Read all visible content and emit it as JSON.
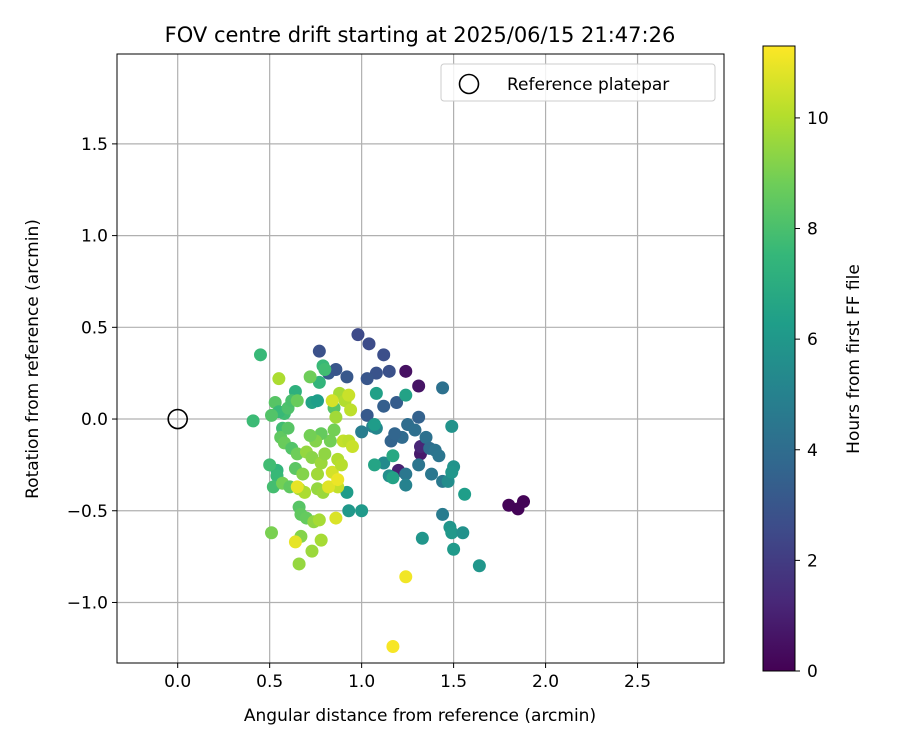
{
  "chart_data": {
    "type": "scatter",
    "title": "FOV centre drift starting at 2025/06/15 21:47:26",
    "xlabel": "Angular distance from reference (arcmin)",
    "ylabel": "Rotation from reference (arcmin)",
    "xlim": [
      -0.33,
      2.97
    ],
    "ylim": [
      -1.33,
      1.99
    ],
    "xticks": [
      0.0,
      0.5,
      1.0,
      1.5,
      2.0,
      2.5
    ],
    "xtick_labels": [
      "0.0",
      "0.5",
      "1.0",
      "1.5",
      "2.0",
      "2.5"
    ],
    "yticks": [
      -1.0,
      -0.5,
      0.0,
      0.5,
      1.0,
      1.5
    ],
    "ytick_labels": [
      "−1.0",
      "−0.5",
      "0.0",
      "0.5",
      "1.0",
      "1.5"
    ],
    "grid": true,
    "legend": {
      "placement": "upper-right",
      "label": "Reference platepar"
    },
    "reference_point": {
      "x": 0.0,
      "y": 0.0
    },
    "colorbar": {
      "label": "Hours from first FF file",
      "colormap": "viridis",
      "range": [
        0,
        11.3
      ],
      "ticks": [
        0,
        2,
        4,
        6,
        8,
        10
      ],
      "tick_labels": [
        "0",
        "2",
        "4",
        "6",
        "8",
        "10"
      ]
    },
    "points": [
      {
        "x": 1.8,
        "y": -0.47,
        "c": 0.1
      },
      {
        "x": 1.85,
        "y": -0.49,
        "c": 0.1
      },
      {
        "x": 1.88,
        "y": -0.45,
        "c": 0.1
      },
      {
        "x": 1.24,
        "y": 0.26,
        "c": 0.5
      },
      {
        "x": 1.31,
        "y": 0.18,
        "c": 0.6
      },
      {
        "x": 1.32,
        "y": -0.19,
        "c": 0.8
      },
      {
        "x": 1.2,
        "y": -0.28,
        "c": 1.0
      },
      {
        "x": 1.32,
        "y": -0.15,
        "c": 1.2
      },
      {
        "x": 0.98,
        "y": 0.46,
        "c": 2.5
      },
      {
        "x": 1.04,
        "y": 0.41,
        "c": 2.6
      },
      {
        "x": 1.12,
        "y": 0.35,
        "c": 2.7
      },
      {
        "x": 1.15,
        "y": 0.26,
        "c": 2.8
      },
      {
        "x": 1.08,
        "y": 0.25,
        "c": 2.9
      },
      {
        "x": 1.03,
        "y": 0.22,
        "c": 3.0
      },
      {
        "x": 0.77,
        "y": 0.37,
        "c": 2.8
      },
      {
        "x": 0.82,
        "y": 0.25,
        "c": 3.2
      },
      {
        "x": 0.86,
        "y": 0.27,
        "c": 3.0
      },
      {
        "x": 0.92,
        "y": 0.23,
        "c": 3.1
      },
      {
        "x": 1.19,
        "y": 0.09,
        "c": 3.3
      },
      {
        "x": 1.12,
        "y": 0.07,
        "c": 3.4
      },
      {
        "x": 1.03,
        "y": 0.02,
        "c": 3.2
      },
      {
        "x": 1.31,
        "y": 0.01,
        "c": 3.5
      },
      {
        "x": 1.25,
        "y": -0.03,
        "c": 4.0
      },
      {
        "x": 1.29,
        "y": -0.06,
        "c": 4.1
      },
      {
        "x": 1.22,
        "y": -0.1,
        "c": 3.9
      },
      {
        "x": 1.16,
        "y": -0.12,
        "c": 3.6
      },
      {
        "x": 1.18,
        "y": -0.08,
        "c": 3.7
      },
      {
        "x": 1.35,
        "y": -0.1,
        "c": 4.2
      },
      {
        "x": 1.37,
        "y": -0.16,
        "c": 4.0
      },
      {
        "x": 1.4,
        "y": -0.17,
        "c": 4.3
      },
      {
        "x": 1.42,
        "y": -0.2,
        "c": 4.4
      },
      {
        "x": 1.38,
        "y": -0.3,
        "c": 4.5
      },
      {
        "x": 1.44,
        "y": -0.34,
        "c": 4.6
      },
      {
        "x": 1.44,
        "y": 0.17,
        "c": 4.2
      },
      {
        "x": 1.44,
        "y": -0.52,
        "c": 4.7
      },
      {
        "x": 1.31,
        "y": -0.25,
        "c": 4.4
      },
      {
        "x": 1.24,
        "y": -0.3,
        "c": 4.5
      },
      {
        "x": 1.24,
        "y": -0.36,
        "c": 5.0
      },
      {
        "x": 1.06,
        "y": -0.04,
        "c": 5.0
      },
      {
        "x": 1.0,
        "y": -0.07,
        "c": 4.8
      },
      {
        "x": 1.08,
        "y": -0.05,
        "c": 5.2
      },
      {
        "x": 1.12,
        "y": -0.24,
        "c": 5.4
      },
      {
        "x": 1.15,
        "y": -0.31,
        "c": 5.6
      },
      {
        "x": 1.47,
        "y": -0.34,
        "c": 5.5
      },
      {
        "x": 1.5,
        "y": -0.26,
        "c": 5.8
      },
      {
        "x": 1.49,
        "y": -0.29,
        "c": 5.9
      },
      {
        "x": 1.49,
        "y": -0.04,
        "c": 5.8
      },
      {
        "x": 1.48,
        "y": -0.59,
        "c": 5.9
      },
      {
        "x": 1.49,
        "y": -0.62,
        "c": 6.0
      },
      {
        "x": 1.55,
        "y": -0.62,
        "c": 5.7
      },
      {
        "x": 1.33,
        "y": -0.65,
        "c": 5.9
      },
      {
        "x": 1.5,
        "y": -0.71,
        "c": 6.1
      },
      {
        "x": 1.56,
        "y": -0.41,
        "c": 6.3
      },
      {
        "x": 1.64,
        "y": -0.8,
        "c": 5.9
      },
      {
        "x": 1.07,
        "y": -0.03,
        "c": 6.2
      },
      {
        "x": 1.08,
        "y": 0.14,
        "c": 6.4
      },
      {
        "x": 1.24,
        "y": 0.13,
        "c": 6.5
      },
      {
        "x": 0.92,
        "y": -0.4,
        "c": 6.2
      },
      {
        "x": 0.93,
        "y": -0.5,
        "c": 6.0
      },
      {
        "x": 1.0,
        "y": -0.5,
        "c": 6.1
      },
      {
        "x": 1.07,
        "y": -0.25,
        "c": 6.6
      },
      {
        "x": 1.17,
        "y": -0.32,
        "c": 6.5
      },
      {
        "x": 1.17,
        "y": -0.2,
        "c": 6.8
      },
      {
        "x": 0.73,
        "y": 0.09,
        "c": 6.5
      },
      {
        "x": 0.76,
        "y": 0.1,
        "c": 6.3
      },
      {
        "x": 0.64,
        "y": 0.15,
        "c": 7.2
      },
      {
        "x": 0.77,
        "y": 0.2,
        "c": 7.4
      },
      {
        "x": 0.79,
        "y": 0.29,
        "c": 7.6
      },
      {
        "x": 0.8,
        "y": 0.27,
        "c": 7.8
      },
      {
        "x": 0.45,
        "y": 0.35,
        "c": 7.6
      },
      {
        "x": 0.41,
        "y": -0.01,
        "c": 7.7
      },
      {
        "x": 0.54,
        "y": -0.28,
        "c": 7.4
      },
      {
        "x": 0.5,
        "y": -0.25,
        "c": 7.8
      },
      {
        "x": 0.54,
        "y": -0.31,
        "c": 7.6
      },
      {
        "x": 0.52,
        "y": -0.37,
        "c": 7.9
      },
      {
        "x": 0.53,
        "y": 0.09,
        "c": 8.3
      },
      {
        "x": 0.58,
        "y": 0.03,
        "c": 7.8
      },
      {
        "x": 0.57,
        "y": -0.05,
        "c": 7.8
      },
      {
        "x": 0.55,
        "y": 0.04,
        "c": 7.6
      },
      {
        "x": 0.6,
        "y": 0.06,
        "c": 8.1
      },
      {
        "x": 0.62,
        "y": 0.1,
        "c": 8.0
      },
      {
        "x": 0.65,
        "y": 0.1,
        "c": 8.7
      },
      {
        "x": 0.56,
        "y": -0.1,
        "c": 8.5
      },
      {
        "x": 0.58,
        "y": -0.13,
        "c": 8.7
      },
      {
        "x": 0.6,
        "y": -0.05,
        "c": 8.3
      },
      {
        "x": 0.62,
        "y": -0.16,
        "c": 8.2
      },
      {
        "x": 0.65,
        "y": -0.19,
        "c": 8.8
      },
      {
        "x": 0.57,
        "y": -0.35,
        "c": 8.9
      },
      {
        "x": 0.61,
        "y": -0.37,
        "c": 8.5
      },
      {
        "x": 0.64,
        "y": -0.27,
        "c": 8.4
      },
      {
        "x": 0.66,
        "y": -0.48,
        "c": 8.3
      },
      {
        "x": 0.67,
        "y": -0.52,
        "c": 8.5
      },
      {
        "x": 0.7,
        "y": -0.54,
        "c": 8.6
      },
      {
        "x": 0.51,
        "y": 0.02,
        "c": 8.2
      },
      {
        "x": 0.51,
        "y": -0.62,
        "c": 9.0
      },
      {
        "x": 0.72,
        "y": 0.23,
        "c": 8.8
      },
      {
        "x": 0.85,
        "y": 0.06,
        "c": 8.3
      },
      {
        "x": 0.85,
        "y": -0.06,
        "c": 8.9
      },
      {
        "x": 0.83,
        "y": -0.12,
        "c": 8.9
      },
      {
        "x": 0.78,
        "y": -0.08,
        "c": 8.6
      },
      {
        "x": 0.75,
        "y": -0.12,
        "c": 9.2
      },
      {
        "x": 0.72,
        "y": -0.09,
        "c": 8.9
      },
      {
        "x": 0.7,
        "y": -0.18,
        "c": 9.5
      },
      {
        "x": 0.73,
        "y": -0.21,
        "c": 9.3
      },
      {
        "x": 0.78,
        "y": -0.24,
        "c": 9.6
      },
      {
        "x": 0.8,
        "y": -0.19,
        "c": 9.4
      },
      {
        "x": 0.76,
        "y": -0.3,
        "c": 9.7
      },
      {
        "x": 0.68,
        "y": -0.3,
        "c": 9.2
      },
      {
        "x": 0.66,
        "y": -0.38,
        "c": 9.8
      },
      {
        "x": 0.69,
        "y": -0.4,
        "c": 9.9
      },
      {
        "x": 0.76,
        "y": -0.38,
        "c": 9.5
      },
      {
        "x": 0.79,
        "y": -0.4,
        "c": 9.6
      },
      {
        "x": 0.74,
        "y": -0.56,
        "c": 9.4
      },
      {
        "x": 0.77,
        "y": -0.55,
        "c": 9.8
      },
      {
        "x": 0.73,
        "y": -0.72,
        "c": 9.6
      },
      {
        "x": 0.78,
        "y": -0.66,
        "c": 9.8
      },
      {
        "x": 0.66,
        "y": -0.79,
        "c": 9.5
      },
      {
        "x": 0.67,
        "y": -0.64,
        "c": 9.2
      },
      {
        "x": 0.55,
        "y": 0.22,
        "c": 9.9
      },
      {
        "x": 0.86,
        "y": 0.01,
        "c": 9.7
      },
      {
        "x": 0.88,
        "y": 0.14,
        "c": 9.8
      },
      {
        "x": 0.91,
        "y": 0.1,
        "c": 10.0
      },
      {
        "x": 0.93,
        "y": 0.13,
        "c": 10.4
      },
      {
        "x": 0.94,
        "y": 0.05,
        "c": 10.2
      },
      {
        "x": 0.84,
        "y": 0.1,
        "c": 10.6
      },
      {
        "x": 0.9,
        "y": -0.12,
        "c": 10.3
      },
      {
        "x": 0.93,
        "y": -0.12,
        "c": 10.2
      },
      {
        "x": 0.95,
        "y": -0.15,
        "c": 10.4
      },
      {
        "x": 0.87,
        "y": -0.22,
        "c": 10.0
      },
      {
        "x": 0.84,
        "y": -0.29,
        "c": 10.6
      },
      {
        "x": 0.89,
        "y": -0.25,
        "c": 10.1
      },
      {
        "x": 0.87,
        "y": -0.37,
        "c": 10.3
      },
      {
        "x": 0.82,
        "y": -0.37,
        "c": 10.8
      },
      {
        "x": 0.86,
        "y": -0.54,
        "c": 10.7
      },
      {
        "x": 0.64,
        "y": -0.67,
        "c": 10.9
      },
      {
        "x": 0.65,
        "y": -0.37,
        "c": 10.9
      },
      {
        "x": 0.87,
        "y": -0.33,
        "c": 11.0
      },
      {
        "x": 1.24,
        "y": -0.86,
        "c": 11.1
      },
      {
        "x": 1.17,
        "y": -1.24,
        "c": 11.2
      }
    ]
  }
}
